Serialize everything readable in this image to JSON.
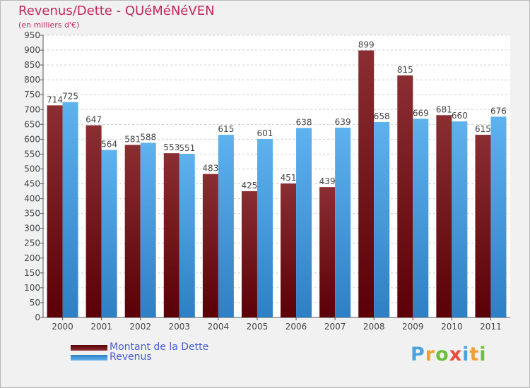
{
  "chart_data": {
    "type": "bar",
    "title": "Revenus/Dette - QUéMéNéVEN",
    "subtitle": "(en milliers d'€)",
    "categories": [
      "2000",
      "2001",
      "2002",
      "2003",
      "2004",
      "2005",
      "2006",
      "2007",
      "2008",
      "2009",
      "2010",
      "2011"
    ],
    "series": [
      {
        "name": "Montant de la Dette",
        "color": "#7a1a1d",
        "values": [
          714,
          647,
          581,
          553,
          483,
          425,
          451,
          439,
          899,
          815,
          681,
          615
        ]
      },
      {
        "name": "Revenus",
        "color": "#4ea6e8",
        "values": [
          725,
          564,
          588,
          551,
          615,
          601,
          638,
          639,
          658,
          669,
          660,
          676
        ]
      }
    ],
    "ylim": [
      0,
      950
    ],
    "ytick_step": 50,
    "grid": true,
    "legend_position": "bottom-left"
  },
  "brand": {
    "letters": [
      "P",
      "r",
      "o",
      "x",
      "i",
      "t",
      "i"
    ],
    "colors": [
      "#4aa3df",
      "#f0a030",
      "#6cbf3a",
      "#e84a3a",
      "#4aa3df",
      "#f0a030",
      "#6cbf3a"
    ]
  }
}
